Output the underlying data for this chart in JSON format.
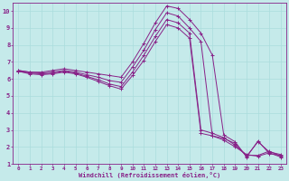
{
  "xlabel": "Windchill (Refroidissement éolien,°C)",
  "background_color": "#c5eaea",
  "line_color": "#882288",
  "grid_color": "#aadddd",
  "xmin": -0.5,
  "xmax": 23.5,
  "ymin": 1,
  "ymax": 10.5,
  "series": [
    [
      6.5,
      6.4,
      6.4,
      6.5,
      6.6,
      6.5,
      6.4,
      6.3,
      6.2,
      6.1,
      7.0,
      8.1,
      9.3,
      10.3,
      10.15,
      9.5,
      8.7,
      7.4,
      2.7,
      2.3,
      1.4,
      2.35,
      1.6,
      1.5
    ],
    [
      6.5,
      6.4,
      6.35,
      6.4,
      6.5,
      6.4,
      6.25,
      6.1,
      5.9,
      5.8,
      6.7,
      7.7,
      8.9,
      9.9,
      9.7,
      9.0,
      8.2,
      2.65,
      2.5,
      2.2,
      1.45,
      2.3,
      1.7,
      1.55
    ],
    [
      6.45,
      6.35,
      6.3,
      6.35,
      6.45,
      6.35,
      6.15,
      5.95,
      5.7,
      5.55,
      6.4,
      7.4,
      8.5,
      9.5,
      9.3,
      8.7,
      3.0,
      2.8,
      2.55,
      2.1,
      1.5,
      1.5,
      1.75,
      1.45
    ],
    [
      6.45,
      6.3,
      6.25,
      6.3,
      6.4,
      6.3,
      6.1,
      5.85,
      5.6,
      5.4,
      6.2,
      7.1,
      8.2,
      9.2,
      9.0,
      8.4,
      2.8,
      2.65,
      2.4,
      2.0,
      1.55,
      1.45,
      1.65,
      1.4
    ]
  ],
  "x_ticks": [
    0,
    1,
    2,
    3,
    4,
    5,
    6,
    7,
    8,
    9,
    10,
    11,
    12,
    13,
    14,
    15,
    16,
    17,
    18,
    19,
    20,
    21,
    22,
    23
  ],
  "y_ticks": [
    1,
    2,
    3,
    4,
    5,
    6,
    7,
    8,
    9,
    10
  ],
  "figsize": [
    3.2,
    2.0
  ],
  "dpi": 100
}
